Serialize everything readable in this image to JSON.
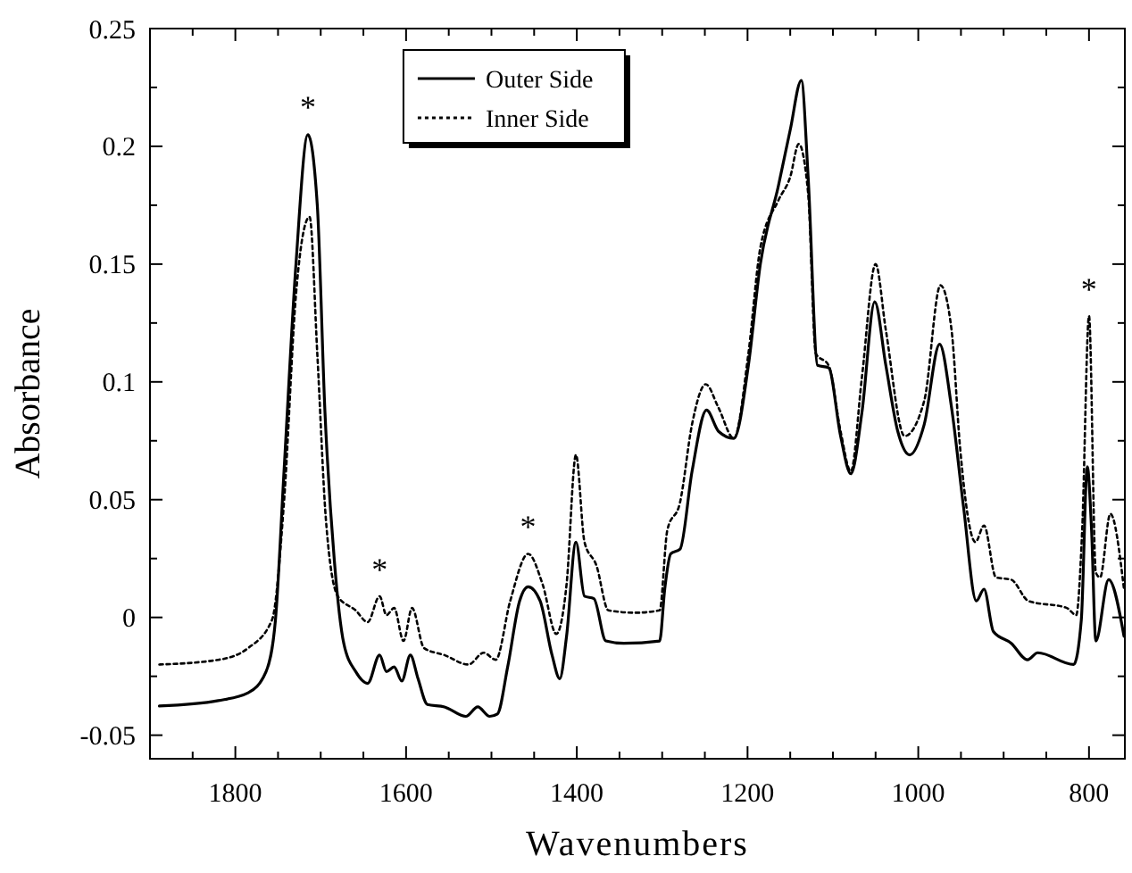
{
  "chart_data": {
    "type": "line",
    "xlabel": "Wavenumbers",
    "ylabel": "Absorbance",
    "xlim": [
      1900,
      758
    ],
    "ylim": [
      -0.06,
      0.25
    ],
    "xticks": [
      {
        "value": 1850,
        "label": null
      },
      1800,
      {
        "value": 1750,
        "label": null
      },
      1600,
      {
        "value": 1650,
        "label": null
      },
      {
        "value": 1700,
        "label": null
      },
      {
        "value": 1550,
        "label": null
      },
      1400,
      {
        "value": 1500,
        "label": null
      },
      {
        "value": 1450,
        "label": null
      },
      {
        "value": 1350,
        "label": null
      },
      1200,
      {
        "value": 1300,
        "label": null
      },
      {
        "value": 1250,
        "label": null
      },
      {
        "value": 1150,
        "label": null
      },
      1000,
      {
        "value": 1100,
        "label": null
      },
      {
        "value": 1050,
        "label": null
      },
      {
        "value": 950,
        "label": null
      },
      800,
      {
        "value": 900,
        "label": null
      },
      {
        "value": 850,
        "label": null
      }
    ],
    "yticks": [
      -0.05,
      0,
      0.05,
      0.1,
      0.15,
      0.2,
      0.25,
      {
        "value": -0.025,
        "label": null
      },
      {
        "value": 0.025,
        "label": null
      },
      {
        "value": 0.075,
        "label": null
      },
      {
        "value": 0.125,
        "label": null
      },
      {
        "value": 0.175,
        "label": null
      },
      {
        "value": 0.225,
        "label": null
      }
    ],
    "legend": "top left",
    "grid": false,
    "series": [
      {
        "name": "Outer Side",
        "color": "#000000",
        "line_style": "solid",
        "x": [
          1889,
          1820,
          1785,
          1764,
          1753,
          1743,
          1729,
          1715,
          1704,
          1695,
          1684,
          1673,
          1659,
          1645,
          1631,
          1623,
          1614,
          1605,
          1595,
          1586,
          1575,
          1555,
          1530,
          1516,
          1502,
          1493,
          1481,
          1467,
          1457,
          1443,
          1429,
          1420,
          1412,
          1401,
          1391,
          1380,
          1366,
          1345,
          1303,
          1297,
          1290,
          1279,
          1265,
          1248,
          1234,
          1216,
          1199,
          1185,
          1164,
          1150,
          1137,
          1129,
          1118,
          1105,
          1091,
          1079,
          1066,
          1051,
          1038,
          1024,
          1010,
          993,
          975,
          961,
          947,
          932,
          923,
          912,
          891,
          872,
          860,
          818,
          809,
          802,
          797,
          792,
          777,
          759
        ],
        "values": [
          -0.0376,
          -0.0353,
          -0.032,
          -0.023,
          -0.001,
          0.062,
          0.15,
          0.205,
          0.175,
          0.087,
          0.024,
          -0.011,
          -0.023,
          -0.028,
          -0.016,
          -0.023,
          -0.021,
          -0.027,
          -0.016,
          -0.026,
          -0.037,
          -0.038,
          -0.042,
          -0.038,
          -0.042,
          -0.041,
          -0.021,
          0.007,
          0.013,
          0.007,
          -0.016,
          -0.026,
          -0.008,
          0.032,
          0.009,
          0.008,
          -0.01,
          -0.011,
          -0.01,
          0.012,
          0.027,
          0.029,
          0.062,
          0.088,
          0.079,
          0.076,
          0.107,
          0.15,
          0.183,
          0.207,
          0.228,
          0.187,
          0.107,
          0.106,
          0.077,
          0.061,
          0.087,
          0.134,
          0.107,
          0.079,
          0.069,
          0.082,
          0.116,
          0.089,
          0.047,
          0.007,
          0.012,
          -0.006,
          -0.011,
          -0.018,
          -0.015,
          -0.02,
          -0.001,
          0.064,
          0.037,
          -0.01,
          0.016,
          -0.008
        ]
      },
      {
        "name": "Inner Side",
        "color": "#000000",
        "line_style": "dotted",
        "x": [
          1889,
          1820,
          1785,
          1757,
          1743,
          1729,
          1718,
          1713,
          1704,
          1694,
          1680,
          1659,
          1645,
          1631,
          1623,
          1614,
          1603,
          1593,
          1579,
          1555,
          1527,
          1509,
          1495,
          1478,
          1457,
          1440,
          1424,
          1412,
          1401,
          1391,
          1377,
          1363,
          1331,
          1303,
          1294,
          1279,
          1265,
          1249,
          1234,
          1216,
          1199,
          1185,
          1164,
          1150,
          1140,
          1129,
          1120,
          1105,
          1091,
          1079,
          1066,
          1050,
          1038,
          1016,
          993,
          974,
          961,
          951,
          933,
          923,
          909,
          891,
          871,
          826,
          815,
          808,
          800,
          792,
          787,
          775,
          759
        ],
        "values": [
          -0.02,
          -0.018,
          -0.013,
          -0.001,
          0.049,
          0.137,
          0.167,
          0.17,
          0.112,
          0.042,
          0.009,
          0.003,
          -0.002,
          0.009,
          0.001,
          0.004,
          -0.01,
          0.004,
          -0.013,
          -0.016,
          -0.02,
          -0.015,
          -0.018,
          0.007,
          0.027,
          0.014,
          -0.007,
          0.014,
          0.069,
          0.032,
          0.022,
          0.003,
          0.002,
          0.003,
          0.037,
          0.049,
          0.082,
          0.099,
          0.089,
          0.076,
          0.112,
          0.157,
          0.177,
          0.187,
          0.201,
          0.18,
          0.112,
          0.107,
          0.079,
          0.062,
          0.102,
          0.15,
          0.122,
          0.077,
          0.092,
          0.141,
          0.122,
          0.072,
          0.032,
          0.039,
          0.017,
          0.016,
          0.007,
          0.004,
          0.001,
          0.037,
          0.128,
          0.019,
          0.017,
          0.044,
          0.012
        ]
      }
    ],
    "annotations": [
      {
        "text": "*",
        "x": 1715,
        "y": 0.205
      },
      {
        "text": "*",
        "x": 1631,
        "y": 0.009
      },
      {
        "text": "*",
        "x": 1457,
        "y": 0.027
      },
      {
        "text": "*",
        "x": 800,
        "y": 0.128
      }
    ]
  }
}
